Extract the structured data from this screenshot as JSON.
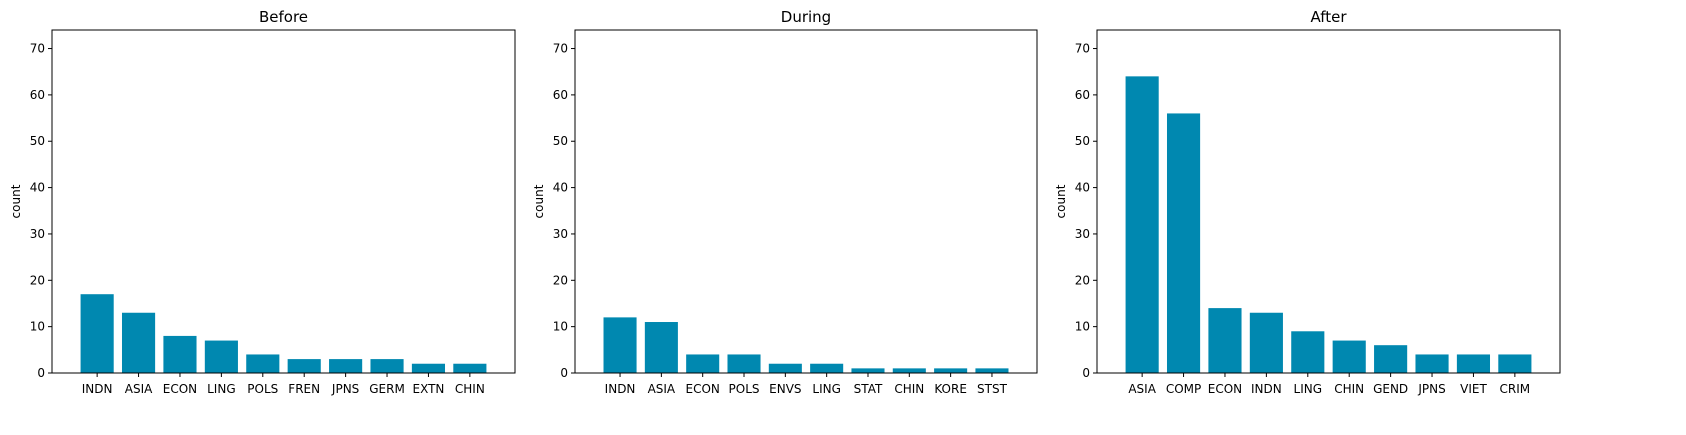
{
  "chart_data": [
    {
      "type": "bar",
      "title": "Before",
      "ylabel": "count",
      "xlabel": "",
      "ylim": [
        0,
        74
      ],
      "yticks": [
        0,
        10,
        20,
        30,
        40,
        50,
        60,
        70
      ],
      "categories": [
        "INDN",
        "ASIA",
        "ECON",
        "LING",
        "POLS",
        "FREN",
        "JPNS",
        "GERM",
        "EXTN",
        "CHIN"
      ],
      "values": [
        17,
        13,
        8,
        7,
        4,
        3,
        3,
        3,
        2,
        2
      ],
      "color": "#0088b0",
      "grid": false
    },
    {
      "type": "bar",
      "title": "During",
      "ylabel": "count",
      "xlabel": "",
      "ylim": [
        0,
        74
      ],
      "yticks": [
        0,
        10,
        20,
        30,
        40,
        50,
        60,
        70
      ],
      "categories": [
        "INDN",
        "ASIA",
        "ECON",
        "POLS",
        "ENVS",
        "LING",
        "STAT",
        "CHIN",
        "KORE",
        "STST"
      ],
      "values": [
        12,
        11,
        4,
        4,
        2,
        2,
        1,
        1,
        1,
        1
      ],
      "color": "#0088b0",
      "grid": false
    },
    {
      "type": "bar",
      "title": "After",
      "ylabel": "count",
      "xlabel": "",
      "ylim": [
        0,
        74
      ],
      "yticks": [
        0,
        10,
        20,
        30,
        40,
        50,
        60,
        70
      ],
      "categories": [
        "ASIA",
        "COMP",
        "ECON",
        "INDN",
        "LING",
        "CHIN",
        "GEND",
        "JPNS",
        "VIET",
        "CRIM"
      ],
      "values": [
        64,
        56,
        14,
        13,
        9,
        7,
        6,
        4,
        4,
        4
      ],
      "color": "#0088b0",
      "grid": false
    }
  ]
}
